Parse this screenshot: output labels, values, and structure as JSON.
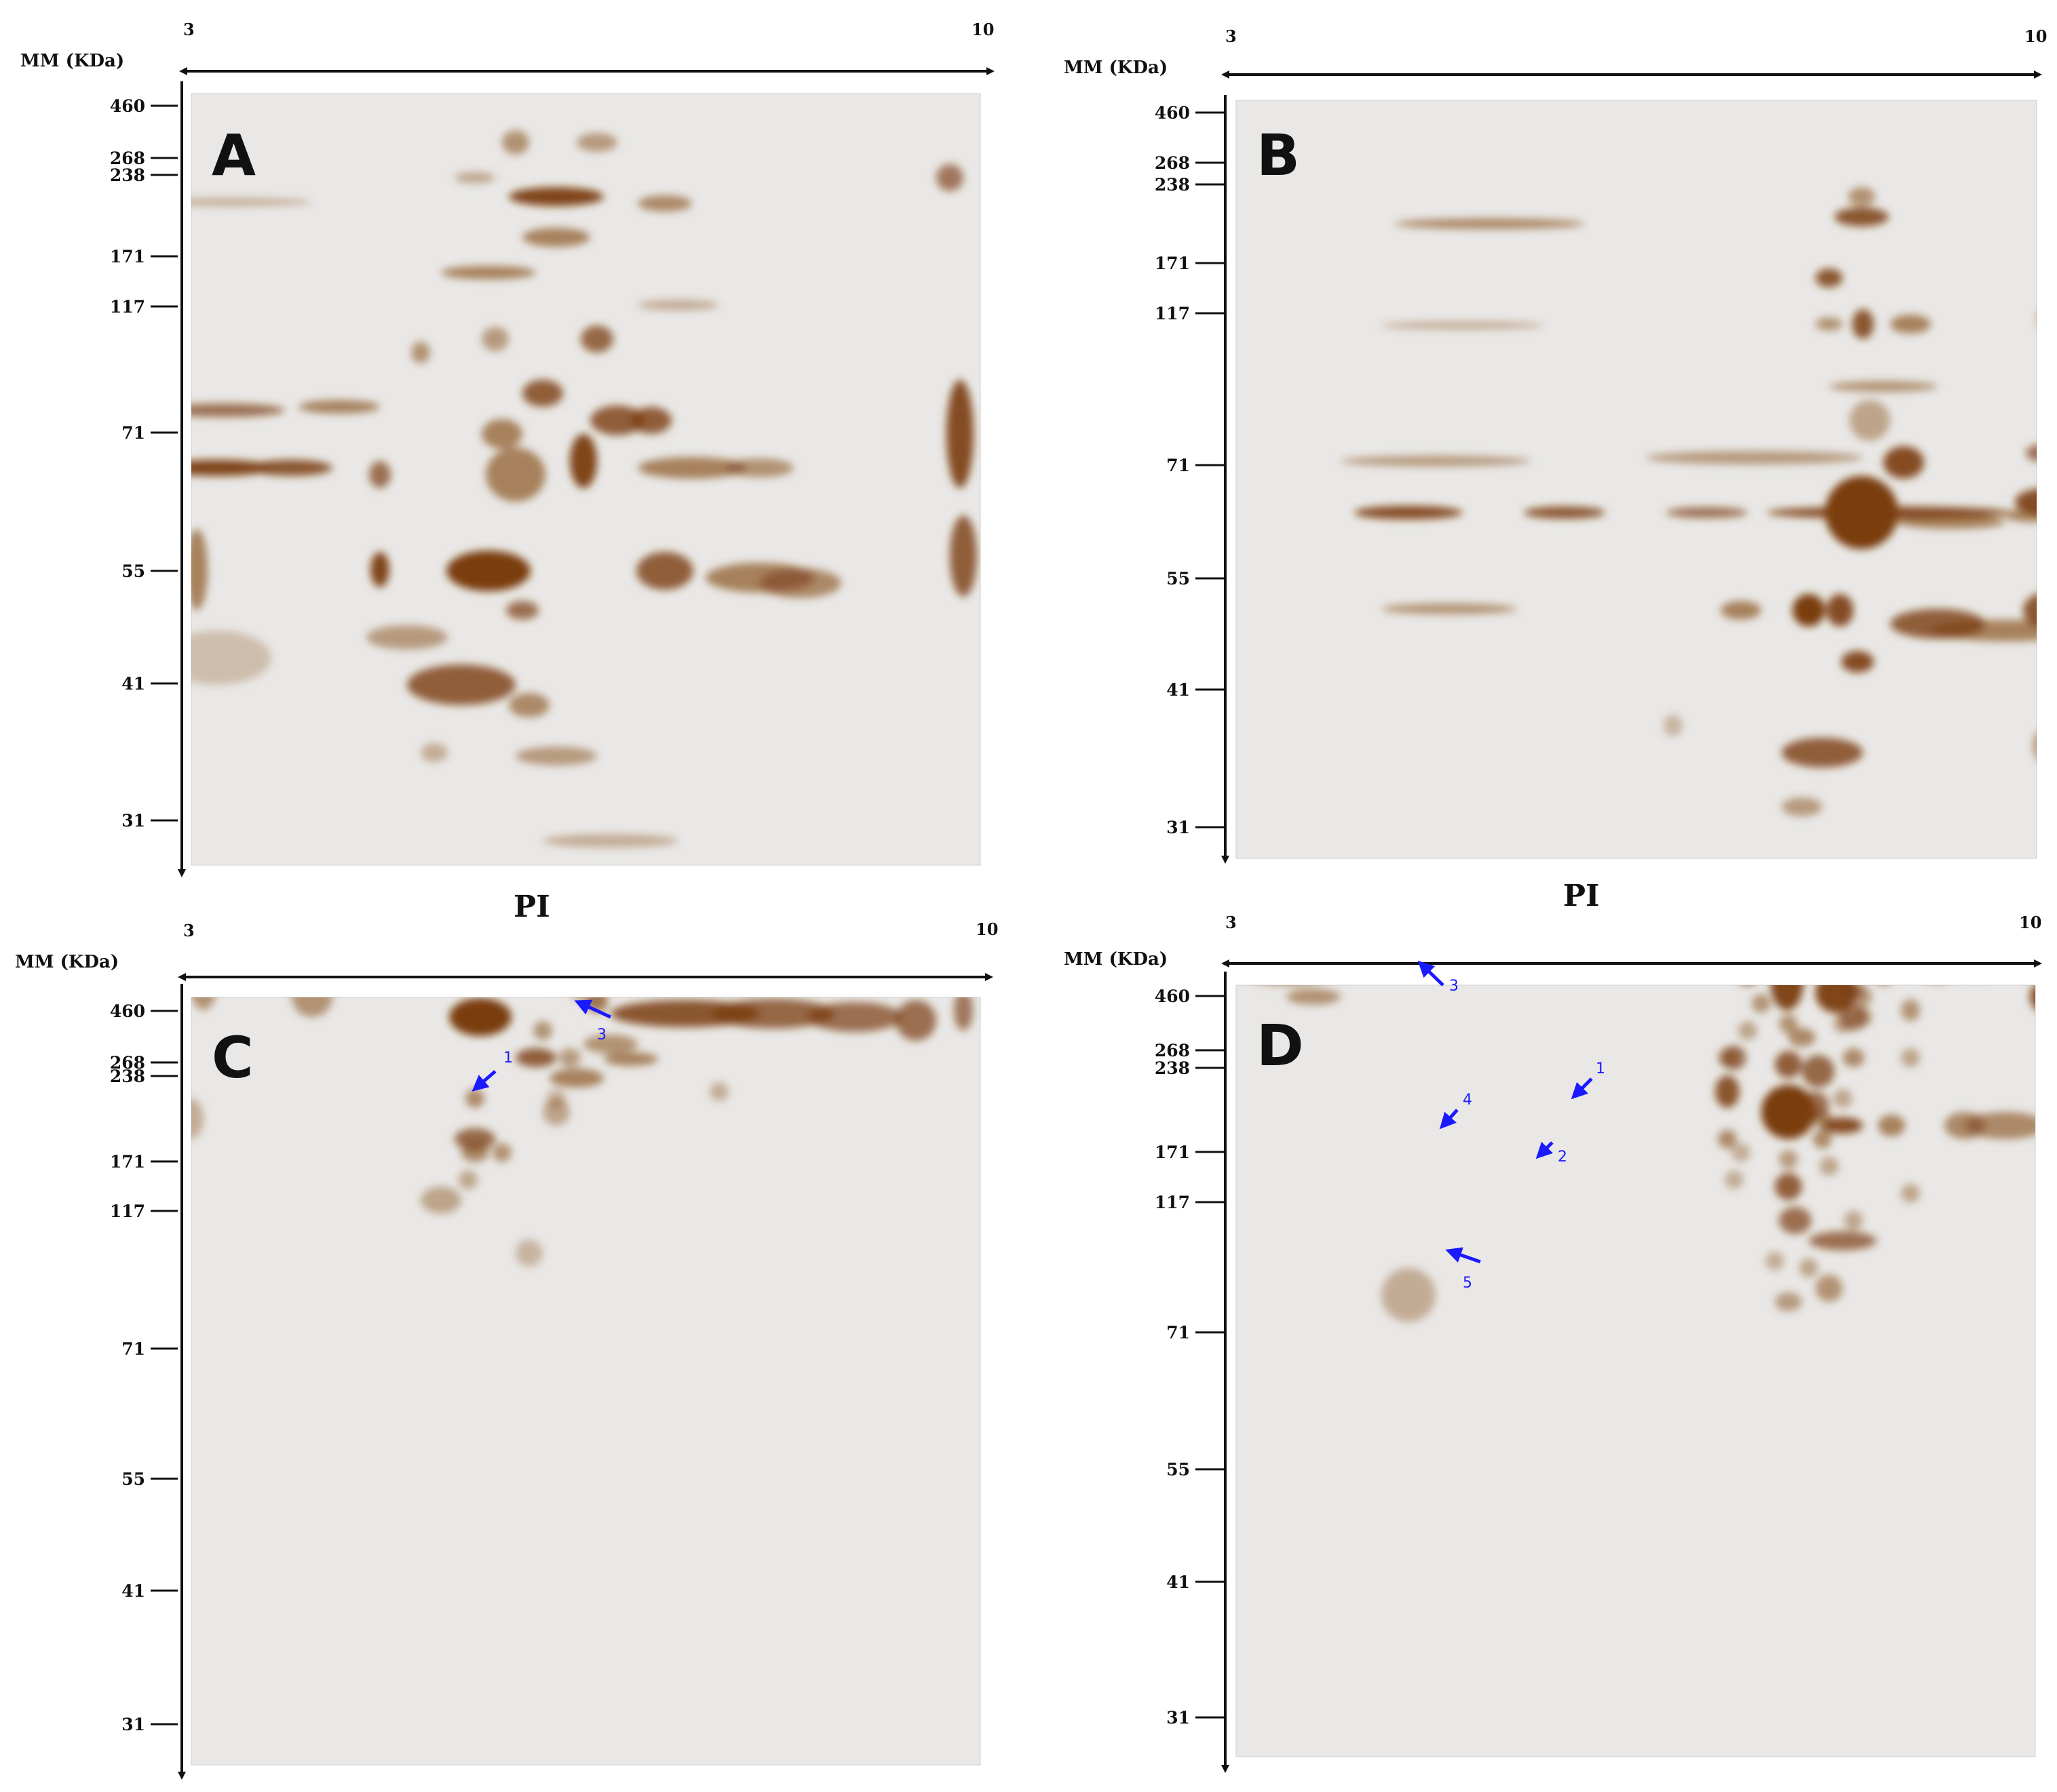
{
  "colors": {
    "stain": "#7a3c0a",
    "gel_background": "#e9e8e6",
    "arrow": "#1a1aff",
    "axis": "#111111"
  },
  "pi_label": "PI",
  "panels": [
    {
      "letter": "A",
      "y_axis_title": "MM (KDa)",
      "ph_start": "3",
      "ph_end": "10",
      "mm_ticks": [
        "460",
        "268",
        "238",
        "171",
        "117",
        "71",
        "55",
        "41",
        "31"
      ],
      "arrows": []
    },
    {
      "letter": "B",
      "y_axis_title": "MM (KDa)",
      "ph_start": "3",
      "ph_end": "10",
      "mm_ticks": [
        "460",
        "268",
        "238",
        "171",
        "117",
        "71",
        "55",
        "41",
        "31"
      ],
      "arrows": []
    },
    {
      "letter": "C",
      "y_axis_title": "MM (KDa)",
      "ph_start": "3",
      "ph_end": "10",
      "mm_ticks": [
        "460",
        "268",
        "238",
        "171",
        "117",
        "71",
        "55",
        "41",
        "31"
      ],
      "arrows": [
        {
          "label": "1"
        },
        {
          "label": "3"
        }
      ]
    },
    {
      "letter": "D",
      "y_axis_title": "MM (KDa)",
      "ph_start": "3",
      "ph_end": "10",
      "mm_ticks": [
        "460",
        "268",
        "238",
        "171",
        "117",
        "71",
        "55",
        "41",
        "31"
      ],
      "arrows": [
        {
          "label": "3"
        },
        {
          "label": "1"
        },
        {
          "label": "4"
        },
        {
          "label": "2"
        },
        {
          "label": "5"
        }
      ]
    }
  ]
}
